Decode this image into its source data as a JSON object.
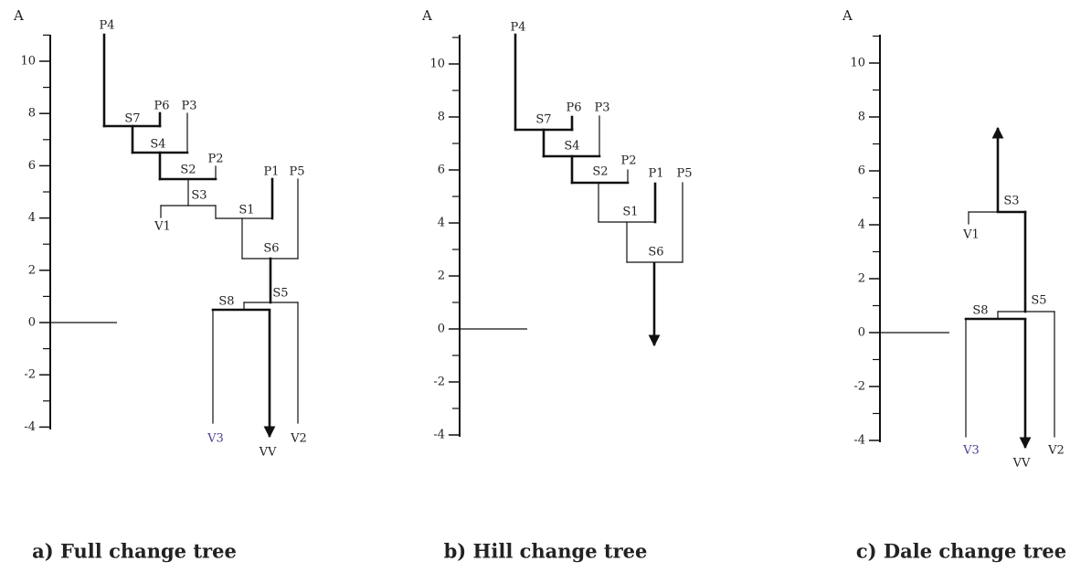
{
  "panels": [
    {
      "axis_label": "A",
      "ticks": [
        "10",
        "8",
        "6",
        "4",
        "2",
        "0",
        "-2",
        "-4"
      ],
      "nodes": [
        "P4",
        "P6",
        "P3",
        "P2",
        "P1",
        "P5",
        "S7",
        "S4",
        "S2",
        "S3",
        "S1",
        "S6",
        "S5",
        "S8",
        "V1",
        "V3",
        "VV",
        "V2"
      ],
      "caption": "a) Full change tree"
    },
    {
      "axis_label": "A",
      "ticks": [
        "10",
        "8",
        "6",
        "4",
        "2",
        "0",
        "-2",
        "-4"
      ],
      "nodes": [
        "P4",
        "P6",
        "P3",
        "P2",
        "P1",
        "P5",
        "S7",
        "S4",
        "S2",
        "S1",
        "S6"
      ],
      "caption": "b) Hill change tree"
    },
    {
      "axis_label": "A",
      "ticks": [
        "10",
        "8",
        "6",
        "4",
        "2",
        "0",
        "-2",
        "-4"
      ],
      "nodes": [
        "S3",
        "S5",
        "S8",
        "V1",
        "V3",
        "VV",
        "V2"
      ],
      "caption": "c) Dale change tree"
    }
  ]
}
